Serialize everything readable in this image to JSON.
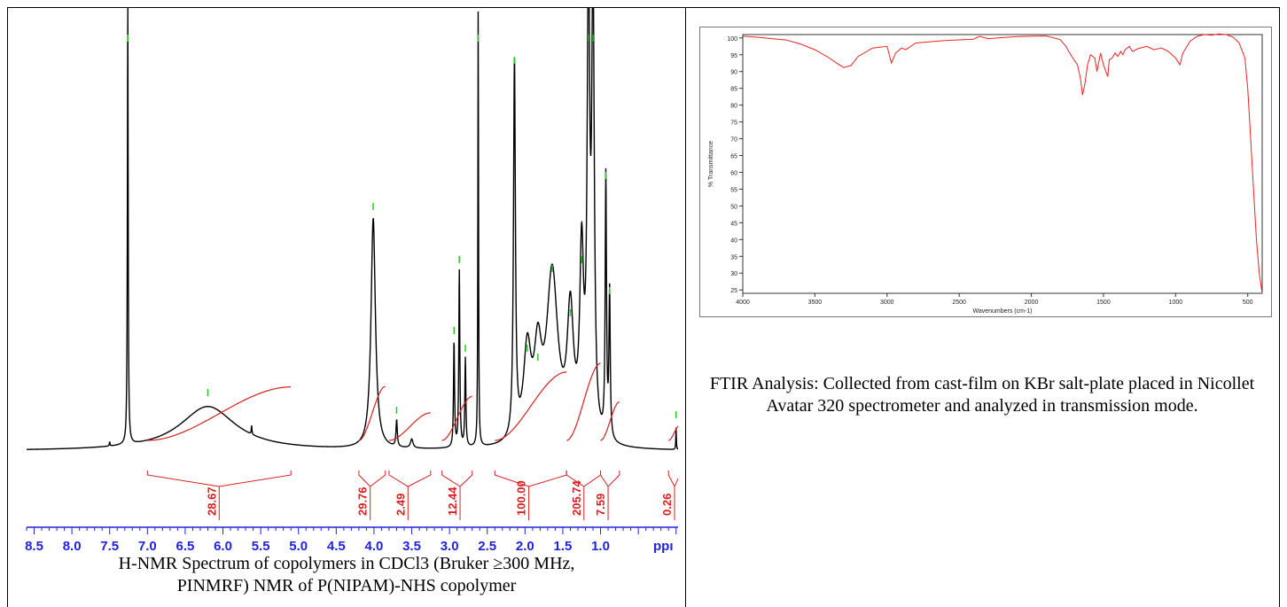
{
  "nmr": {
    "caption_line1": "H-NMR Spectrum of copolymers in CDCl3 (Bruker ≥300 MHz,",
    "caption_line2": "PINMRF) NMR of P(NIPAM)-NHS copolymer",
    "axis_unit_label": "ppı",
    "colors": {
      "spectrum": "#000000",
      "integral": "#d62020",
      "peak_marker": "#22cc22",
      "axis": "#2222dd"
    }
  },
  "ftir": {
    "caption": "FTIR Analysis: Collected from cast-film on KBr salt-plate placed in Nicollet Avatar 320 spectrometer and analyzed in transmission mode.",
    "colors": {
      "spectrum": "#ee2222",
      "axis": "#333333"
    }
  },
  "chart_data": [
    {
      "type": "line",
      "title": "",
      "xlabel": "ppı",
      "ylabel": "",
      "xlim": [
        8.6,
        -0.05
      ],
      "x_ticks": [
        "8.5",
        "8.0",
        "7.5",
        "7.0",
        "6.5",
        "6.0",
        "5.5",
        "5.0",
        "4.5",
        "4.0",
        "3.5",
        "3.0",
        "2.5",
        "2.0",
        "1.5",
        "1.0"
      ],
      "x_tick_values": [
        8.5,
        8.0,
        7.5,
        7.0,
        6.5,
        6.0,
        5.5,
        5.0,
        4.5,
        4.0,
        3.5,
        3.0,
        2.5,
        2.0,
        1.5,
        1.0
      ],
      "series": [
        {
          "role": "spectrum",
          "peaks": [
            {
              "ppm": 7.26,
              "height": 1.0,
              "width": 0.006
            },
            {
              "ppm": 7.5,
              "height": 0.01,
              "width": 0.005
            },
            {
              "ppm": 6.2,
              "height": 0.1,
              "width": 0.45
            },
            {
              "ppm": 5.62,
              "height": 0.02,
              "width": 0.005
            },
            {
              "ppm": 4.01,
              "height": 0.52,
              "width": 0.035
            },
            {
              "ppm": 3.7,
              "height": 0.06,
              "width": 0.01
            },
            {
              "ppm": 3.5,
              "height": 0.02,
              "width": 0.02
            },
            {
              "ppm": 2.94,
              "height": 0.24,
              "width": 0.008
            },
            {
              "ppm": 2.87,
              "height": 0.4,
              "width": 0.008
            },
            {
              "ppm": 2.79,
              "height": 0.2,
              "width": 0.008
            },
            {
              "ppm": 2.62,
              "height": 1.0,
              "width": 0.005
            },
            {
              "ppm": 2.14,
              "height": 0.85,
              "width": 0.015
            },
            {
              "ppm": 1.97,
              "height": 0.2,
              "width": 0.06
            },
            {
              "ppm": 1.83,
              "height": 0.18,
              "width": 0.06
            },
            {
              "ppm": 1.64,
              "height": 0.38,
              "width": 0.09
            },
            {
              "ppm": 1.4,
              "height": 0.28,
              "width": 0.05
            },
            {
              "ppm": 1.25,
              "height": 0.4,
              "width": 0.03
            },
            {
              "ppm": 1.16,
              "height": 1.0,
              "width": 0.02
            },
            {
              "ppm": 1.1,
              "height": 1.0,
              "width": 0.02
            },
            {
              "ppm": 0.93,
              "height": 0.59,
              "width": 0.01
            },
            {
              "ppm": 0.88,
              "height": 0.33,
              "width": 0.01
            },
            {
              "ppm": 0.0,
              "height": 0.05,
              "width": 0.004
            }
          ]
        }
      ],
      "integrals": [
        {
          "from": 7.0,
          "to": 5.1,
          "value": "28.67",
          "label_ppm": 6.05
        },
        {
          "from": 4.2,
          "to": 3.85,
          "value": "29.76",
          "label_ppm": 4.05
        },
        {
          "from": 3.8,
          "to": 3.25,
          "value": "2.49",
          "label_ppm": 3.55
        },
        {
          "from": 3.1,
          "to": 2.7,
          "value": "12.44",
          "label_ppm": 2.86
        },
        {
          "from": 2.4,
          "to": 1.45,
          "value": "100.00",
          "label_ppm": 1.95
        },
        {
          "from": 1.45,
          "to": 1.0,
          "value": "205.74",
          "label_ppm": 1.22
        },
        {
          "from": 1.0,
          "to": 0.75,
          "value": "7.59",
          "label_ppm": 0.9
        },
        {
          "from": 0.1,
          "to": -0.05,
          "value": "0.26",
          "label_ppm": 0.02
        }
      ]
    },
    {
      "type": "line",
      "title": "",
      "xlabel": "Wavenumbers (cm-1)",
      "ylabel": "% Transmittance",
      "xlim": [
        4000,
        400
      ],
      "ylim": [
        24,
        101
      ],
      "x_ticks": [
        4000,
        3500,
        3000,
        2500,
        2000,
        1500,
        1000,
        500
      ],
      "y_ticks": [
        25,
        30,
        35,
        40,
        45,
        50,
        55,
        60,
        65,
        70,
        75,
        80,
        85,
        90,
        95,
        100
      ],
      "series": [
        {
          "role": "transmittance",
          "x": [
            4000,
            3900,
            3800,
            3700,
            3600,
            3500,
            3400,
            3350,
            3300,
            3250,
            3200,
            3100,
            3000,
            2970,
            2940,
            2900,
            2870,
            2800,
            2600,
            2400,
            2360,
            2300,
            2100,
            1900,
            1800,
            1760,
            1720,
            1680,
            1660,
            1645,
            1630,
            1610,
            1590,
            1560,
            1545,
            1520,
            1500,
            1470,
            1460,
            1440,
            1420,
            1400,
            1380,
            1365,
            1350,
            1320,
            1300,
            1260,
            1200,
            1150,
            1100,
            1050,
            1000,
            970,
            950,
            900,
            850,
            800,
            750,
            700,
            650,
            600,
            560,
            520,
            500,
            480,
            460,
            440,
            420,
            400
          ],
          "y": [
            100.5,
            100.2,
            99.8,
            99.4,
            98.2,
            96.5,
            94.0,
            92.5,
            91.2,
            91.8,
            94.5,
            97.0,
            97.5,
            92.5,
            95.5,
            97.0,
            96.5,
            98.5,
            99.2,
            99.6,
            100.5,
            99.8,
            100.4,
            100.6,
            99.5,
            97.5,
            94.5,
            92.0,
            88.0,
            83.0,
            86.0,
            92.0,
            95.0,
            94.0,
            90.0,
            95.5,
            92.0,
            88.5,
            93.5,
            94.0,
            95.5,
            94.5,
            96.0,
            95.0,
            96.5,
            97.5,
            96.0,
            96.8,
            97.5,
            96.5,
            97.0,
            96.0,
            94.0,
            92.0,
            95.5,
            99.0,
            100.5,
            101.0,
            100.8,
            101.2,
            101.0,
            100.2,
            98.5,
            94.0,
            85.0,
            70.0,
            55.0,
            40.0,
            30.0,
            24.0
          ]
        }
      ]
    }
  ]
}
